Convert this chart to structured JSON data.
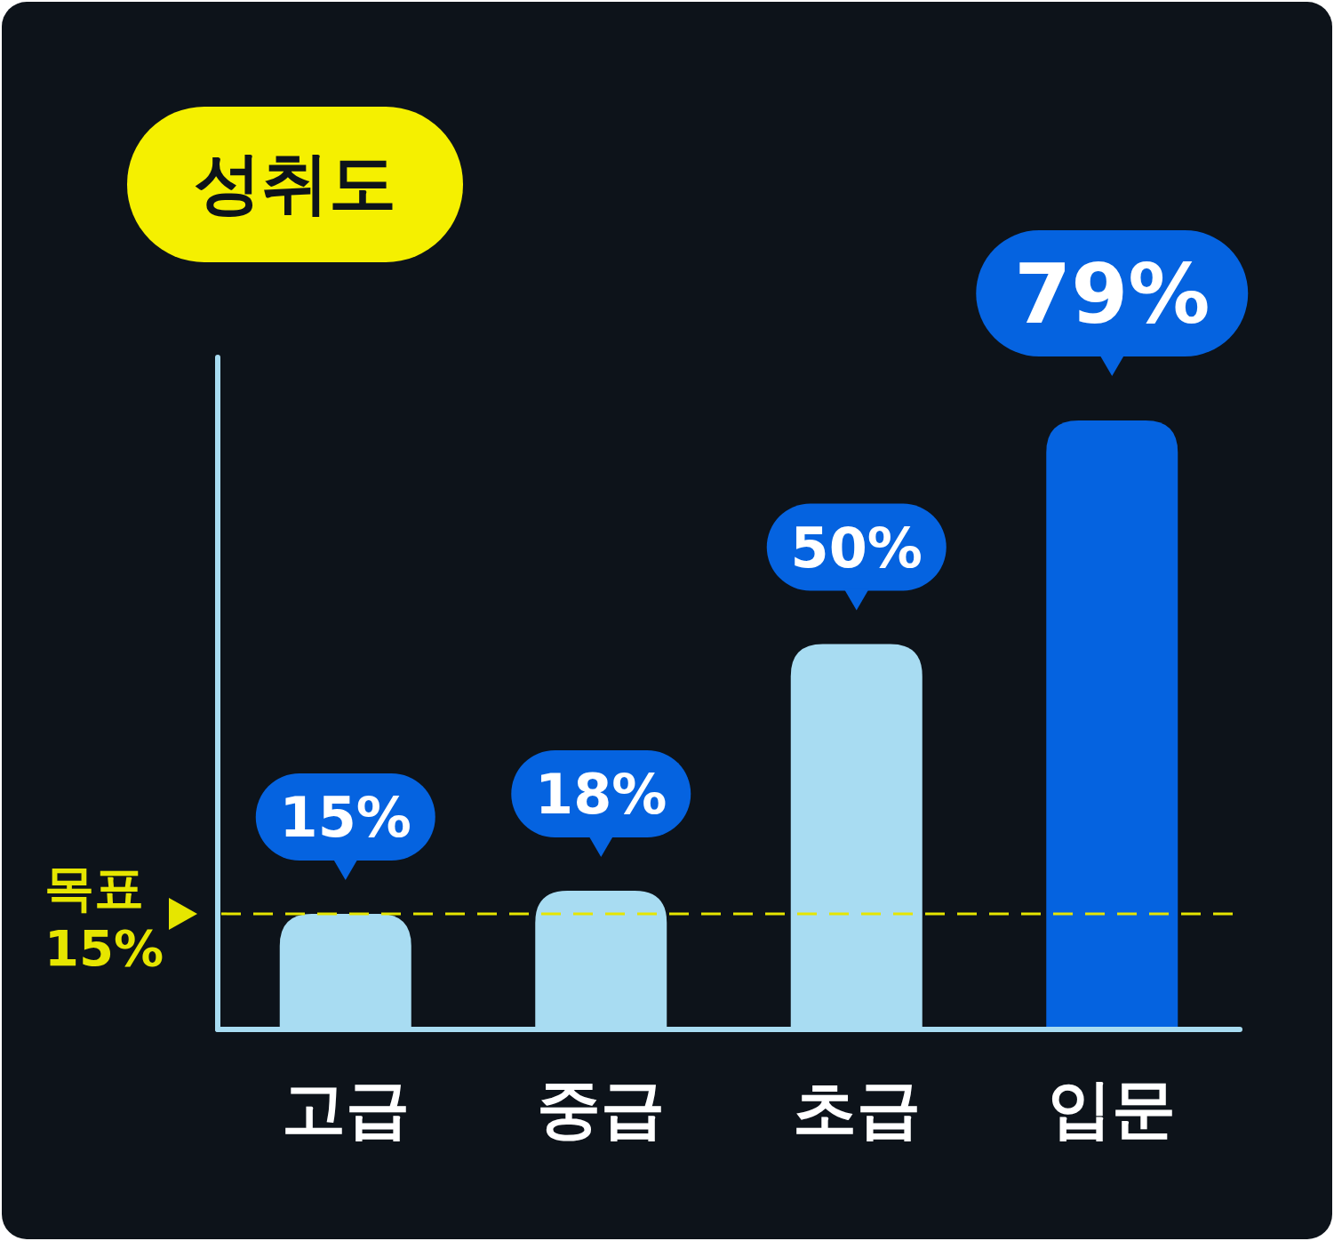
{
  "chart_data": {
    "type": "bar",
    "title": "성취도",
    "categories": [
      "고급",
      "중급",
      "초급",
      "입문"
    ],
    "values": [
      15,
      18,
      50,
      79
    ],
    "colors": [
      "#a8dcf2",
      "#a8dcf2",
      "#a8dcf2",
      "#0563e0"
    ],
    "value_labels": [
      "15%",
      "18%",
      "50%",
      "79%"
    ],
    "ref_lines": [
      {
        "axis": "y",
        "value": 15,
        "label": "목표 15%",
        "color": "#e6e600",
        "line_style": "dashed"
      }
    ]
  }
}
